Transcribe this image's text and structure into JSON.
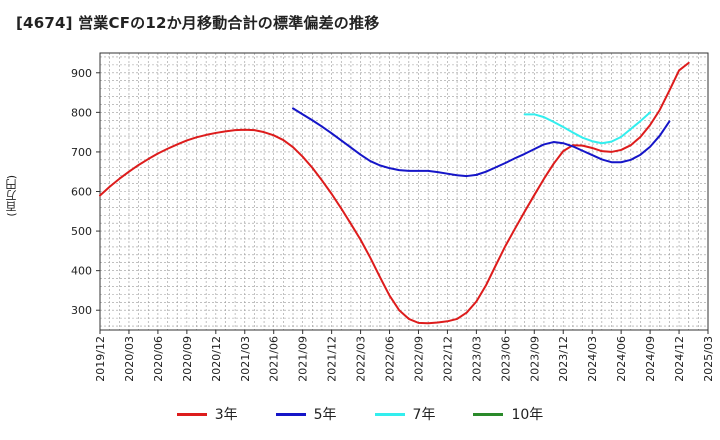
{
  "chart_data": {
    "type": "line",
    "title": "[4674]  営業CFの12か月移動合計の標準偏差の推移",
    "ylabel": "(百万円)",
    "xlabel": "",
    "ylim": [
      250,
      950
    ],
    "yticks": [
      300,
      400,
      500,
      600,
      700,
      800,
      900
    ],
    "xlim": [
      "2019-12",
      "2025-03"
    ],
    "xticks": [
      "2019/12",
      "2020/03",
      "2020/06",
      "2020/09",
      "2020/12",
      "2021/03",
      "2021/06",
      "2021/09",
      "2021/12",
      "2022/03",
      "2022/06",
      "2022/09",
      "2022/12",
      "2023/03",
      "2023/06",
      "2023/09",
      "2023/12",
      "2024/03",
      "2024/06",
      "2024/09",
      "2024/12",
      "2025/03"
    ],
    "grid": true,
    "legend_position": "bottom",
    "series": [
      {
        "name": "3年",
        "color": "#dd1c1c",
        "points": [
          [
            "2019-12",
            590
          ],
          [
            "2020-01",
            612
          ],
          [
            "2020-02",
            632
          ],
          [
            "2020-03",
            650
          ],
          [
            "2020-04",
            667
          ],
          [
            "2020-05",
            682
          ],
          [
            "2020-06",
            696
          ],
          [
            "2020-07",
            708
          ],
          [
            "2020-08",
            719
          ],
          [
            "2020-09",
            729
          ],
          [
            "2020-10",
            737
          ],
          [
            "2020-11",
            743
          ],
          [
            "2020-12",
            748
          ],
          [
            "2021-01",
            752
          ],
          [
            "2021-02",
            755
          ],
          [
            "2021-03",
            756
          ],
          [
            "2021-04",
            755
          ],
          [
            "2021-05",
            750
          ],
          [
            "2021-06",
            742
          ],
          [
            "2021-07",
            730
          ],
          [
            "2021-08",
            712
          ],
          [
            "2021-09",
            688
          ],
          [
            "2021-10",
            660
          ],
          [
            "2021-11",
            628
          ],
          [
            "2021-12",
            594
          ],
          [
            "2022-01",
            557
          ],
          [
            "2022-02",
            518
          ],
          [
            "2022-03",
            478
          ],
          [
            "2022-04",
            433
          ],
          [
            "2022-05",
            384
          ],
          [
            "2022-06",
            337
          ],
          [
            "2022-07",
            300
          ],
          [
            "2022-08",
            278
          ],
          [
            "2022-09",
            268
          ],
          [
            "2022-10",
            267
          ],
          [
            "2022-11",
            269
          ],
          [
            "2022-12",
            272
          ],
          [
            "2023-01",
            278
          ],
          [
            "2023-02",
            294
          ],
          [
            "2023-03",
            322
          ],
          [
            "2023-04",
            363
          ],
          [
            "2023-05",
            413
          ],
          [
            "2023-06",
            462
          ],
          [
            "2023-07",
            506
          ],
          [
            "2023-08",
            549
          ],
          [
            "2023-09",
            591
          ],
          [
            "2023-10",
            632
          ],
          [
            "2023-11",
            670
          ],
          [
            "2023-12",
            702
          ],
          [
            "2024-01",
            717
          ],
          [
            "2024-02",
            716
          ],
          [
            "2024-03",
            710
          ],
          [
            "2024-04",
            702
          ],
          [
            "2024-05",
            700
          ],
          [
            "2024-06",
            705
          ],
          [
            "2024-07",
            717
          ],
          [
            "2024-08",
            738
          ],
          [
            "2024-09",
            768
          ],
          [
            "2024-10",
            806
          ],
          [
            "2024-11",
            855
          ],
          [
            "2024-12",
            906
          ],
          [
            "2025-01",
            925
          ]
        ]
      },
      {
        "name": "5年",
        "color": "#1515c8",
        "points": [
          [
            "2021-08",
            810
          ],
          [
            "2021-09",
            795
          ],
          [
            "2021-10",
            780
          ],
          [
            "2021-11",
            764
          ],
          [
            "2021-12",
            747
          ],
          [
            "2022-01",
            729
          ],
          [
            "2022-02",
            711
          ],
          [
            "2022-03",
            693
          ],
          [
            "2022-04",
            677
          ],
          [
            "2022-05",
            666
          ],
          [
            "2022-06",
            659
          ],
          [
            "2022-07",
            654
          ],
          [
            "2022-08",
            652
          ],
          [
            "2022-09",
            652
          ],
          [
            "2022-10",
            652
          ],
          [
            "2022-11",
            649
          ],
          [
            "2022-12",
            645
          ],
          [
            "2023-01",
            641
          ],
          [
            "2023-02",
            639
          ],
          [
            "2023-03",
            642
          ],
          [
            "2023-04",
            650
          ],
          [
            "2023-05",
            661
          ],
          [
            "2023-06",
            672
          ],
          [
            "2023-07",
            684
          ],
          [
            "2023-08",
            695
          ],
          [
            "2023-09",
            707
          ],
          [
            "2023-10",
            719
          ],
          [
            "2023-11",
            725
          ],
          [
            "2023-12",
            722
          ],
          [
            "2024-01",
            714
          ],
          [
            "2024-02",
            703
          ],
          [
            "2024-03",
            692
          ],
          [
            "2024-04",
            681
          ],
          [
            "2024-05",
            674
          ],
          [
            "2024-06",
            674
          ],
          [
            "2024-07",
            680
          ],
          [
            "2024-08",
            693
          ],
          [
            "2024-09",
            713
          ],
          [
            "2024-10",
            741
          ],
          [
            "2024-11",
            777
          ]
        ]
      },
      {
        "name": "7年",
        "color": "#33eeee",
        "points": [
          [
            "2023-08",
            795
          ],
          [
            "2023-09",
            795
          ],
          [
            "2023-10",
            788
          ],
          [
            "2023-11",
            776
          ],
          [
            "2023-12",
            763
          ],
          [
            "2024-01",
            749
          ],
          [
            "2024-02",
            736
          ],
          [
            "2024-03",
            727
          ],
          [
            "2024-04",
            722
          ],
          [
            "2024-05",
            726
          ],
          [
            "2024-06",
            738
          ],
          [
            "2024-07",
            758
          ],
          [
            "2024-08",
            778
          ],
          [
            "2024-09",
            800
          ]
        ]
      },
      {
        "name": "10年",
        "color": "#2a8a2a",
        "points": []
      }
    ]
  }
}
